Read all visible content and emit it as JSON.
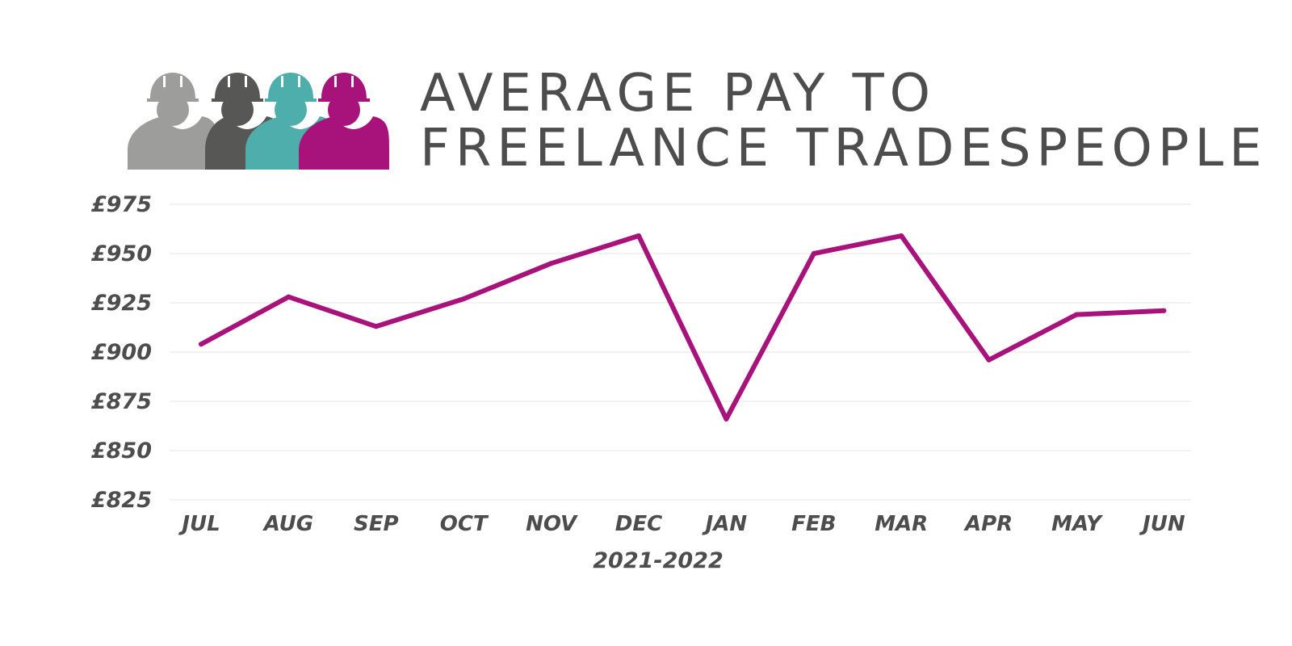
{
  "header": {
    "title_line_1": "AVERAGE PAY TO",
    "title_line_2": "FREELANCE TRADESPEOPLE",
    "logo": {
      "icon": "construction-workers-icon",
      "colors": [
        "#9d9d9c",
        "#575756",
        "#4daeab",
        "#a8137b"
      ]
    }
  },
  "colors": {
    "line": "#a8137b",
    "text": "#4d4d4d",
    "grid": "#e6e6e6"
  },
  "chart_data": {
    "type": "line",
    "title": "AVERAGE PAY TO FREELANCE TRADESPEOPLE",
    "xlabel": "2021-2022",
    "ylabel": "",
    "categories": [
      "JUL",
      "AUG",
      "SEP",
      "OCT",
      "NOV",
      "DEC",
      "JAN",
      "FEB",
      "MAR",
      "APR",
      "MAY",
      "JUN"
    ],
    "series": [
      {
        "values": [
          904,
          928,
          913,
          927,
          945,
          959,
          866,
          950,
          959,
          896,
          919,
          921
        ]
      }
    ],
    "ylim": [
      825,
      975
    ],
    "yticks": [
      975,
      950,
      925,
      900,
      875,
      850,
      825
    ],
    "ytick_labels": [
      "£975",
      "£950",
      "£925",
      "£900",
      "£875",
      "£850",
      "£825"
    ],
    "grid": true,
    "legend": "none"
  }
}
